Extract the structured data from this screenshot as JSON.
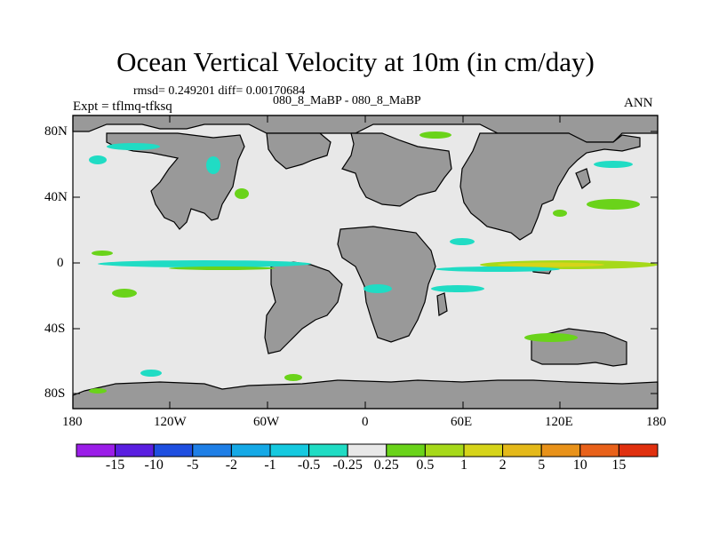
{
  "title": "Ocean Vertical Velocity at 10m (in cm/day)",
  "stats": "rmsd= 0.249201 diff= 0.00170684",
  "expt": "Expt = tflmq-tfksq",
  "case": "080_8_MaBP - 080_8_MaBP",
  "period": "ANN",
  "lat_ticks": [
    "80N",
    "40N",
    "0",
    "40S",
    "80S"
  ],
  "lon_ticks": [
    "180",
    "120W",
    "60W",
    "0",
    "60E",
    "120E",
    "180"
  ],
  "colorbar": {
    "labels": [
      "-15",
      "-10",
      "-5",
      "-2",
      "-1",
      "-0.5",
      "-0.25",
      "0.25",
      "0.5",
      "1",
      "2",
      "5",
      "10",
      "15"
    ],
    "colors": [
      "#9b1ee8",
      "#5a1fe0",
      "#1f4fe0",
      "#1f7fe6",
      "#15a9e6",
      "#15c9df",
      "#20dcc4",
      "#e8e8e8",
      "#6ad31a",
      "#a6d91a",
      "#d6d41a",
      "#e4b91a",
      "#e8921a",
      "#e8611a",
      "#e0300f"
    ]
  },
  "colors": {
    "land": "#999999",
    "ocean": "#e8e8e8",
    "coast": "#000000"
  }
}
